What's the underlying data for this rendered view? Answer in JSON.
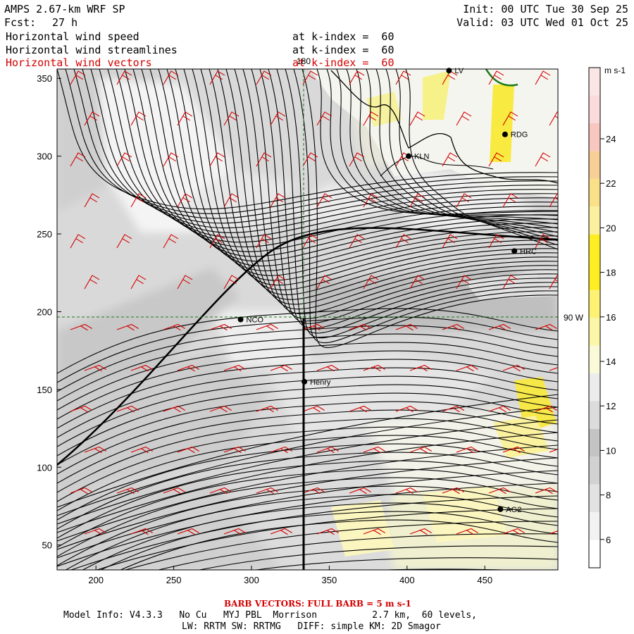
{
  "header": {
    "model": "AMPS 2.67-km WRF SP",
    "fcst_label": "Fcst:",
    "fcst_value": "27 h",
    "init": "Init: 00 UTC Tue 30 Sep 25",
    "valid": "Valid: 03 UTC Wed 01 Oct 25",
    "fields": [
      {
        "name": "Horizontal wind speed",
        "level": "at k-index =  60",
        "color": "#000000"
      },
      {
        "name": "Horizontal wind streamlines",
        "level": "at k-index =  60",
        "color": "#000000"
      },
      {
        "name": "Horizontal wind vectors",
        "level": "at k-index =  60",
        "color": "#d40000"
      }
    ]
  },
  "map": {
    "x_ticks": [
      "200",
      "250",
      "300",
      "350",
      "400",
      "450"
    ],
    "y_ticks": [
      "50",
      "100",
      "150",
      "200",
      "250",
      "300",
      "350"
    ],
    "meridian_label": "180",
    "parallel_label": "90 W",
    "stations": [
      {
        "id": "NCO",
        "x": 293,
        "y": 195
      },
      {
        "id": "Henry",
        "x": 334,
        "y": 155
      },
      {
        "id": "KLN",
        "x": 401,
        "y": 300
      },
      {
        "id": "RDG",
        "x": 463,
        "y": 314
      },
      {
        "id": "HRC",
        "x": 469,
        "y": 239
      },
      {
        "id": "AG2",
        "x": 460,
        "y": 73
      },
      {
        "id": "LV",
        "x": 427,
        "y": 355
      }
    ]
  },
  "colorbar": {
    "units": "m s-1",
    "ticks": [
      "24",
      "22",
      "20",
      "18",
      "16",
      "14",
      "12",
      "10",
      "8",
      "6"
    ],
    "colors": [
      "#ffffff",
      "#f2f2f2",
      "#e2e2e2",
      "#d2d2d2",
      "#c4c4c4",
      "#dcdcdc",
      "#ececec",
      "#fafad8",
      "#fbf6a8",
      "#fdf274",
      "#fded22",
      "#fded22",
      "#fbf0a0",
      "#fbe08a",
      "#f9cf98",
      "#f8c8c0",
      "#fadada",
      "#fbe6e6"
    ]
  },
  "footer": {
    "barb_note": "BARB VECTORS: FULL BARB = 5 m s-1",
    "line1": "Model Info: V4.3.3   No Cu   MYJ PBL  Morrison          2.7 km,  60 levels,",
    "line2": "LW: RRTM SW: RRTMG   DIFF: simple KM: 2D Smagor"
  }
}
